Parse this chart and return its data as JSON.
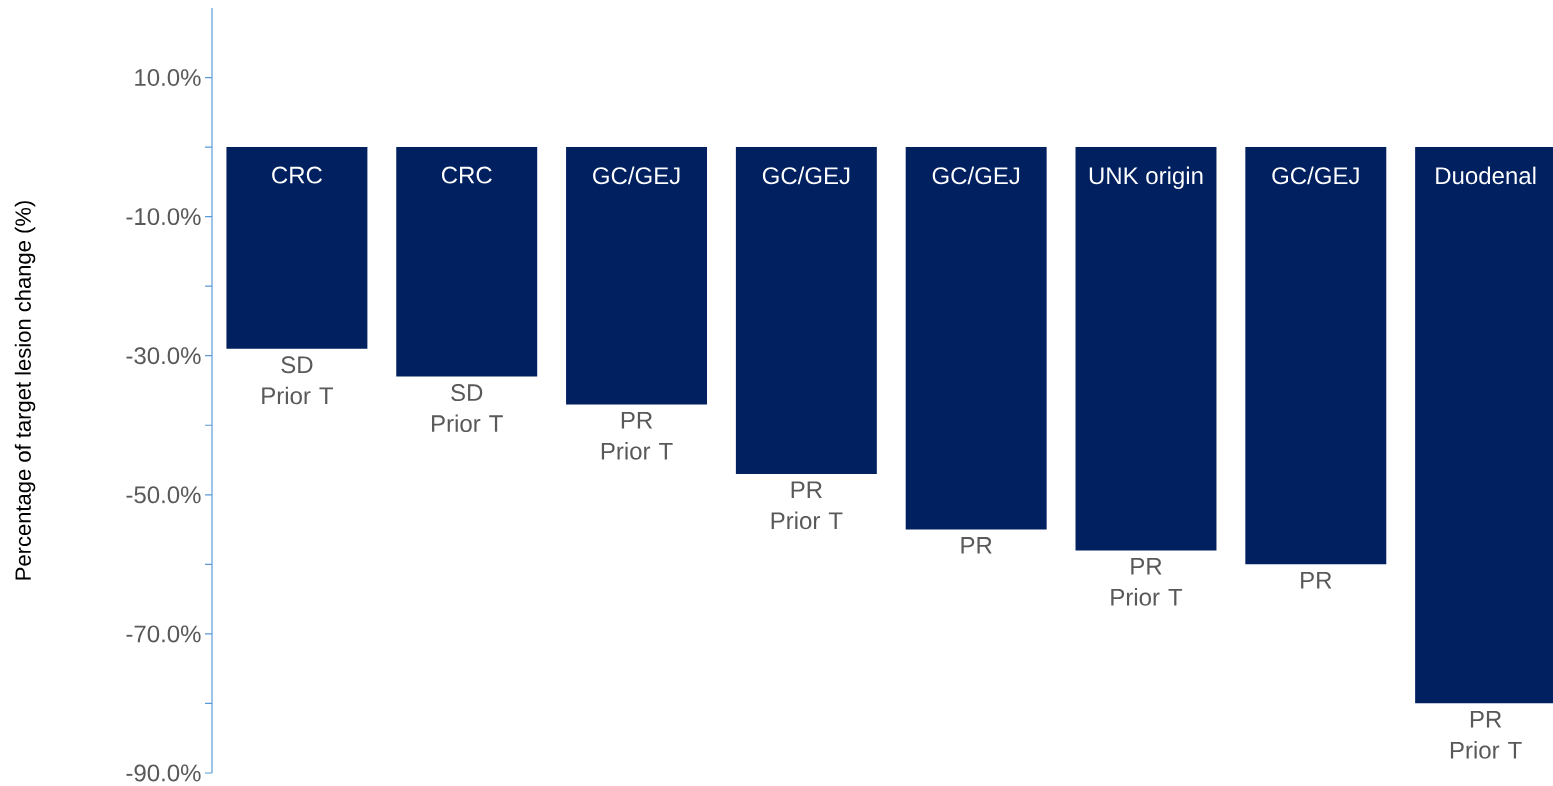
{
  "chart_data": {
    "type": "bar",
    "ylabel": "Percentage of target lesion change (%)",
    "categories": [
      "CRC",
      "CRC",
      "GC/GEJ",
      "GC/GEJ",
      "GC/GEJ",
      "UNK origin",
      "GC/GEJ",
      "Duodenal"
    ],
    "values": [
      -29,
      -33,
      -37,
      -47,
      -55,
      -58,
      -60,
      -80
    ],
    "color": "#002060",
    "ylim": [
      -90,
      20
    ],
    "yticks": [
      {
        "value": 10,
        "label": "10.0%"
      },
      {
        "value": 0,
        "label": null
      },
      {
        "value": -10,
        "label": "-10.0%"
      },
      {
        "value": -20,
        "label": null
      },
      {
        "value": -30,
        "label": "-30.0%"
      },
      {
        "value": -40,
        "label": null
      },
      {
        "value": -50,
        "label": "-50.0%"
      },
      {
        "value": -60,
        "label": null
      },
      {
        "value": -70,
        "label": "-70.0%"
      },
      {
        "value": -80,
        "label": null
      },
      {
        "value": -90,
        "label": "-90.0%"
      }
    ],
    "value_labels": [
      "SD Prior T",
      "SD Prior T",
      "PR Prior T",
      "PR Prior T",
      "PR",
      "PR Prior T",
      "PR",
      "PR Prior T"
    ]
  }
}
